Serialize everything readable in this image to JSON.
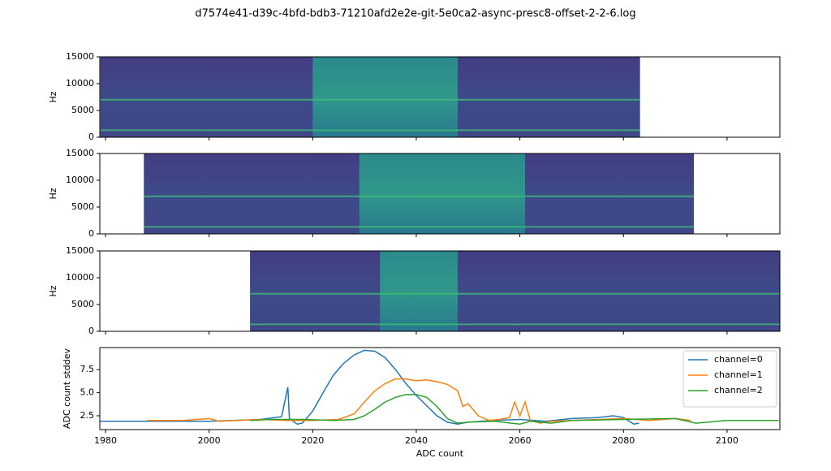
{
  "title": "d7574e41-d39c-4bfd-bdb3-71210afd2e2e-git-5e0ca2-async-presc8-offset-2-2-6.log",
  "chart_data": [
    {
      "type": "spectrogram",
      "ylabel": "Hz",
      "ylim": [
        0,
        15000
      ],
      "yticks": [
        0,
        5000,
        10000,
        15000
      ],
      "extent": [
        1979,
        2083.2
      ],
      "bright_region": [
        2020,
        2048
      ],
      "bands": [
        7000,
        1300
      ]
    },
    {
      "type": "spectrogram",
      "ylabel": "Hz",
      "ylim": [
        0,
        15000
      ],
      "yticks": [
        0,
        5000,
        10000,
        15000
      ],
      "extent": [
        1987.4,
        2093.6
      ],
      "bright_region": [
        2029,
        2061
      ],
      "bands": [
        7000,
        1300
      ]
    },
    {
      "type": "spectrogram",
      "ylabel": "Hz",
      "ylim": [
        0,
        15000
      ],
      "yticks": [
        0,
        5000,
        10000,
        15000
      ],
      "extent": [
        2007.9,
        2110.2
      ],
      "bright_region": [
        2033,
        2048
      ],
      "bands": [
        7000,
        1300
      ]
    },
    {
      "type": "line",
      "xlabel": "ADC count",
      "ylabel": "ADC count stddev",
      "xlim": [
        1978.9,
        2110.2
      ],
      "xticks": [
        1980,
        2000,
        2020,
        2040,
        2060,
        2080,
        2100
      ],
      "ylim": [
        1.0,
        9.9
      ],
      "yticks": [
        2.5,
        {
          "value": 5,
          "label": "5.0"
        },
        7.5
      ],
      "legend": "upper right",
      "series": [
        {
          "name": "channel=0",
          "color": "#1f77b4",
          "x": [
            1979,
            1990,
            2000,
            2010,
            2014,
            2015.2,
            2015.5,
            2017,
            2018,
            2020,
            2022,
            2024,
            2026,
            2028,
            2030,
            2032,
            2034,
            2036,
            2038,
            2040,
            2042,
            2044,
            2046,
            2048,
            2050,
            2055,
            2060,
            2065,
            2070,
            2075,
            2078,
            2080,
            2082,
            2083
          ],
          "values": [
            1.9,
            1.9,
            1.9,
            2.1,
            2.4,
            5.6,
            2.2,
            1.6,
            1.7,
            3.0,
            5.0,
            6.9,
            8.2,
            9.1,
            9.6,
            9.5,
            8.8,
            7.5,
            6.0,
            4.7,
            3.6,
            2.5,
            1.8,
            1.6,
            1.8,
            2.0,
            2.1,
            1.9,
            2.2,
            2.3,
            2.5,
            2.3,
            1.6,
            1.7
          ]
        },
        {
          "name": "channel=1",
          "color": "#ff7f0e",
          "x": [
            1988,
            1995,
            2000,
            2002,
            2005,
            2010,
            2015,
            2020,
            2025,
            2028,
            2030,
            2032,
            2034,
            2036,
            2038,
            2040,
            2042,
            2044,
            2046,
            2048,
            2049,
            2050,
            2052,
            2054,
            2056,
            2058,
            2059,
            2060,
            2061,
            2062,
            2064,
            2066,
            2070,
            2080,
            2085,
            2090,
            2093
          ],
          "values": [
            2.0,
            2.0,
            2.2,
            1.9,
            2.0,
            2.1,
            2.0,
            2.0,
            2.1,
            2.7,
            4.0,
            5.2,
            6.0,
            6.5,
            6.5,
            6.3,
            6.4,
            6.2,
            5.9,
            5.2,
            3.5,
            3.8,
            2.5,
            2.0,
            2.1,
            2.3,
            4.0,
            2.5,
            4.0,
            2.0,
            1.7,
            1.9,
            2.0,
            2.2,
            2.0,
            2.2,
            2.0
          ]
        },
        {
          "name": "channel=2",
          "color": "#2ca02c",
          "x": [
            2008,
            2012,
            2018,
            2024,
            2028,
            2030,
            2032,
            2034,
            2036,
            2038,
            2040,
            2042,
            2044,
            2046,
            2048,
            2050,
            2055,
            2060,
            2062,
            2066,
            2070,
            2080,
            2090,
            2094,
            2100,
            2110
          ],
          "values": [
            2.0,
            2.1,
            2.1,
            2.0,
            2.1,
            2.5,
            3.2,
            4.0,
            4.5,
            4.8,
            4.8,
            4.5,
            3.5,
            2.2,
            1.7,
            1.8,
            1.9,
            1.6,
            1.9,
            1.7,
            2.0,
            2.1,
            2.2,
            1.7,
            2.0,
            2.0
          ]
        }
      ]
    }
  ]
}
